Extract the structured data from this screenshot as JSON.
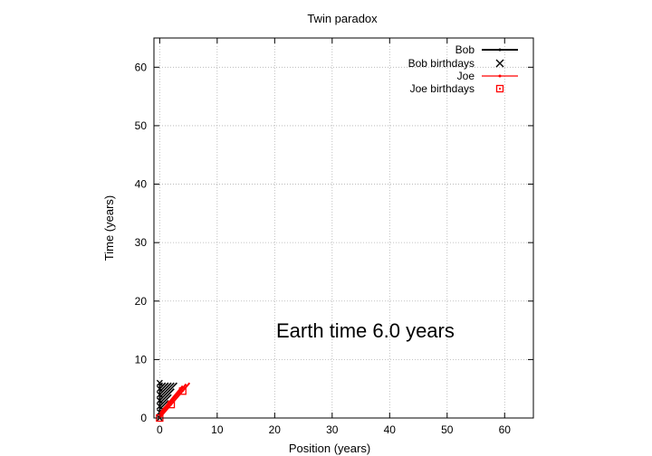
{
  "chart_data": {
    "type": "line",
    "title": "Twin paradox",
    "xlabel": "Position (years)",
    "ylabel": "Time (years)",
    "xlim": [
      -1,
      65
    ],
    "ylim": [
      0,
      65
    ],
    "xticks": [
      0,
      10,
      20,
      30,
      40,
      50,
      60
    ],
    "yticks": [
      0,
      10,
      20,
      30,
      40,
      50,
      60
    ],
    "grid": true,
    "legend_position": "top-right",
    "annotation": "Earth time  6.0 years",
    "series": [
      {
        "name": "Bob",
        "kind": "lines",
        "color": "#000000",
        "segments": [
          [
            [
              0,
              0
            ],
            [
              0,
              6
            ]
          ],
          [
            [
              0,
              1
            ],
            [
              1,
              2
            ]
          ],
          [
            [
              0,
              2
            ],
            [
              2,
              4
            ]
          ],
          [
            [
              0,
              3
            ],
            [
              3,
              6
            ]
          ],
          [
            [
              0,
              4
            ],
            [
              2,
              6
            ]
          ],
          [
            [
              0,
              5
            ],
            [
              1,
              6
            ]
          ],
          [
            [
              0,
              1.5
            ],
            [
              1.5,
              3
            ]
          ],
          [
            [
              0,
              2.5
            ],
            [
              2.5,
              5
            ]
          ],
          [
            [
              0,
              3.5
            ],
            [
              2.5,
              6
            ]
          ],
          [
            [
              0,
              4.5
            ],
            [
              1.5,
              6
            ]
          ],
          [
            [
              0,
              5.5
            ],
            [
              0.5,
              6
            ]
          ]
        ]
      },
      {
        "name": "Bob birthdays",
        "kind": "points",
        "marker": "x",
        "color": "#000000",
        "points": [
          [
            0,
            0
          ],
          [
            0,
            1
          ],
          [
            0,
            2
          ],
          [
            0,
            3
          ],
          [
            0,
            4
          ],
          [
            0,
            5
          ],
          [
            0,
            6
          ]
        ]
      },
      {
        "name": "Joe",
        "kind": "lines",
        "color": "#ff0000",
        "segments": [
          [
            [
              0,
              0
            ],
            [
              5.2,
              6
            ]
          ],
          [
            [
              0,
              0.4
            ],
            [
              4.6,
              5.8
            ]
          ],
          [
            [
              0,
              0.8
            ],
            [
              4.0,
              5.5
            ]
          ]
        ]
      },
      {
        "name": "Joe birthdays",
        "kind": "points",
        "marker": "square",
        "color": "#ff0000",
        "points": [
          [
            0,
            0
          ],
          [
            2,
            2.3
          ],
          [
            4,
            4.6
          ]
        ]
      }
    ]
  }
}
